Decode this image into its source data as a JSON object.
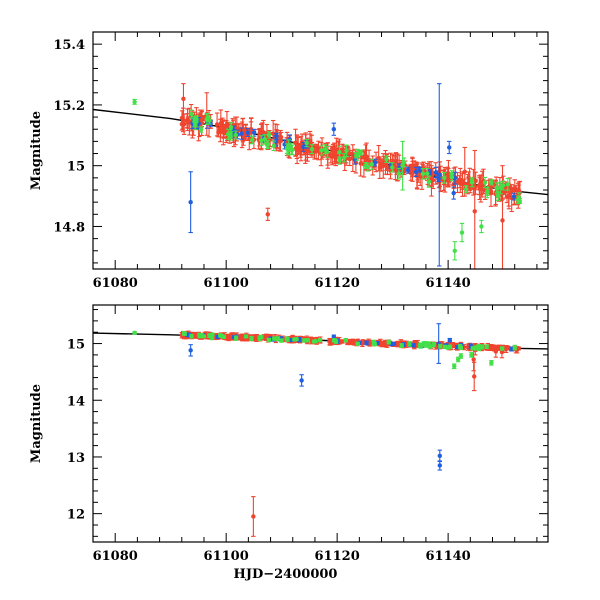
{
  "colors": {
    "red": "#f0442f",
    "blue": "#1f5fe0",
    "green": "#44e04a",
    "model": "#000000"
  },
  "chart_data": [
    {
      "type": "scatter",
      "panel": "top",
      "xlabel": "",
      "ylabel": "Magnitude",
      "xlim": [
        61076,
        61158
      ],
      "ylim": [
        15.44,
        14.66
      ],
      "y_inverted": true,
      "x_ticks": [
        61080,
        61100,
        61120,
        61140
      ],
      "x_tick_labels": [
        "61080",
        "61100",
        "61120",
        "61140"
      ],
      "y_ticks": [
        14.8,
        15.0,
        15.2,
        15.4
      ],
      "y_tick_labels": [
        "14.8",
        "15",
        "15.2",
        "15.4"
      ],
      "model_curve": {
        "x": [
          61076,
          61090,
          61100,
          61110,
          61120,
          61130,
          61140,
          61150,
          61158
        ],
        "y": [
          15.185,
          15.155,
          15.125,
          15.085,
          15.045,
          15.0,
          14.955,
          14.92,
          14.905
        ]
      },
      "trend": {
        "x0": 61092,
        "x1": 61153,
        "y0": 15.155,
        "y1": 14.905
      },
      "series": [
        {
          "name": "red",
          "color": "red",
          "n": 330,
          "seed": 7,
          "scatter": 0.018,
          "err_min": 0.008,
          "err_max": 0.045,
          "points": [
            {
              "x": 61107.5,
              "y": 14.84,
              "err": 0.02
            },
            {
              "x": 61092.3,
              "y": 15.22,
              "err": 0.05
            },
            {
              "x": 61096.5,
              "y": 15.17,
              "err": 0.07
            },
            {
              "x": 61144.8,
              "y": 14.85,
              "err": 0.2
            },
            {
              "x": 61149.8,
              "y": 14.82,
              "err": 0.18
            },
            {
              "x": 61143.0,
              "y": 14.98,
              "err": 0.08
            },
            {
              "x": 61137.0,
              "y": 14.95,
              "err": 0.05
            }
          ]
        },
        {
          "name": "blue",
          "color": "blue",
          "n": 30,
          "seed": 11,
          "scatter": 0.012,
          "err_min": 0.008,
          "err_max": 0.02,
          "points": [
            {
              "x": 61093.6,
              "y": 14.88,
              "err": 0.1
            },
            {
              "x": 61119.4,
              "y": 15.12,
              "err": 0.02
            },
            {
              "x": 61138.4,
              "y": 14.97,
              "err": 0.3
            },
            {
              "x": 61140.2,
              "y": 15.06,
              "err": 0.02
            },
            {
              "x": 61141.0,
              "y": 14.91,
              "err": 0.02
            }
          ]
        },
        {
          "name": "green",
          "color": "green",
          "n": 70,
          "seed": 23,
          "scatter": 0.025,
          "err_min": 0.008,
          "err_max": 0.02,
          "points": [
            {
              "x": 61083.5,
              "y": 15.21,
              "err": 0.008
            },
            {
              "x": 61141.2,
              "y": 14.72,
              "err": 0.03
            },
            {
              "x": 61142.5,
              "y": 14.78,
              "err": 0.03
            },
            {
              "x": 61146.0,
              "y": 14.8,
              "err": 0.02
            },
            {
              "x": 61131.8,
              "y": 15.0,
              "err": 0.08
            }
          ]
        }
      ]
    },
    {
      "type": "scatter",
      "panel": "bottom",
      "xlabel": "HJD−2400000",
      "ylabel": "Magnitude",
      "xlim": [
        61076,
        61158
      ],
      "ylim": [
        15.68,
        11.5
      ],
      "y_inverted": true,
      "x_ticks": [
        61080,
        61100,
        61120,
        61140
      ],
      "x_tick_labels": [
        "61080",
        "61100",
        "61120",
        "61140"
      ],
      "y_ticks": [
        12,
        13,
        14,
        15
      ],
      "y_tick_labels": [
        "12",
        "13",
        "14",
        "15"
      ],
      "model_curve": {
        "x": [
          61076,
          61090,
          61100,
          61110,
          61120,
          61130,
          61140,
          61150,
          61158
        ],
        "y": [
          15.185,
          15.155,
          15.125,
          15.085,
          15.045,
          15.0,
          14.955,
          14.92,
          14.905
        ]
      },
      "trend": {
        "x0": 61092,
        "x1": 61153,
        "y0": 15.155,
        "y1": 14.905
      },
      "series": [
        {
          "name": "red",
          "color": "red",
          "n": 330,
          "seed": 7,
          "scatter": 0.02,
          "err_min": 0.02,
          "err_max": 0.06,
          "points": [
            {
              "x": 61104.9,
              "y": 11.95,
              "err": 0.35
            },
            {
              "x": 61144.7,
              "y": 14.42,
              "err": 0.25
            },
            {
              "x": 61144.6,
              "y": 14.72,
              "err": 0.2
            },
            {
              "x": 61144.9,
              "y": 14.9,
              "err": 0.1
            },
            {
              "x": 61148.6,
              "y": 14.86,
              "err": 0.1
            },
            {
              "x": 61149.7,
              "y": 14.85,
              "err": 0.1
            }
          ]
        },
        {
          "name": "blue",
          "color": "blue",
          "n": 30,
          "seed": 11,
          "scatter": 0.015,
          "err_min": 0.02,
          "err_max": 0.04,
          "points": [
            {
              "x": 61093.6,
              "y": 14.88,
              "err": 0.1
            },
            {
              "x": 61113.6,
              "y": 14.35,
              "err": 0.1
            },
            {
              "x": 61138.5,
              "y": 12.85,
              "err": 0.08
            },
            {
              "x": 61138.5,
              "y": 13.02,
              "err": 0.1
            },
            {
              "x": 61138.3,
              "y": 15.0,
              "err": 0.35
            },
            {
              "x": 61119.4,
              "y": 15.12,
              "err": 0.03
            },
            {
              "x": 61140.3,
              "y": 15.06,
              "err": 0.03
            }
          ]
        },
        {
          "name": "green",
          "color": "green",
          "n": 70,
          "seed": 23,
          "scatter": 0.03,
          "err_min": 0.02,
          "err_max": 0.04,
          "points": [
            {
              "x": 61083.5,
              "y": 15.19,
              "err": 0.02
            },
            {
              "x": 61141.1,
              "y": 14.6,
              "err": 0.04
            },
            {
              "x": 61141.8,
              "y": 14.72,
              "err": 0.04
            },
            {
              "x": 61142.3,
              "y": 14.78,
              "err": 0.04
            },
            {
              "x": 61147.8,
              "y": 14.66,
              "err": 0.04
            },
            {
              "x": 61144.2,
              "y": 14.8,
              "err": 0.04
            }
          ]
        }
      ]
    }
  ]
}
